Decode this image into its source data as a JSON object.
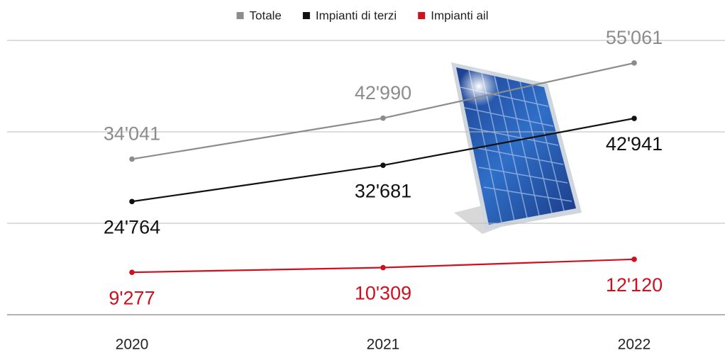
{
  "chart_data": {
    "type": "line",
    "categories": [
      "2020",
      "2021",
      "2022"
    ],
    "series": [
      {
        "name": "Totale",
        "color": "#8c8c8c",
        "values": [
          34041,
          42990,
          55061
        ],
        "value_labels": [
          "34'041",
          "42'990",
          "55'061"
        ]
      },
      {
        "name": "Impianti di terzi",
        "color": "#111111",
        "values": [
          24764,
          32681,
          42941
        ],
        "value_labels": [
          "24'764",
          "32'681",
          "42'941"
        ]
      },
      {
        "name": "Impianti ail",
        "color": "#d0101e",
        "values": [
          9277,
          10309,
          12120
        ],
        "value_labels": [
          "9'277",
          "10'309",
          "12'120"
        ]
      }
    ],
    "ylim": [
      0,
      60000
    ],
    "yticks": [
      0,
      20000,
      40000,
      60000
    ],
    "grid": true,
    "legend": "top"
  }
}
